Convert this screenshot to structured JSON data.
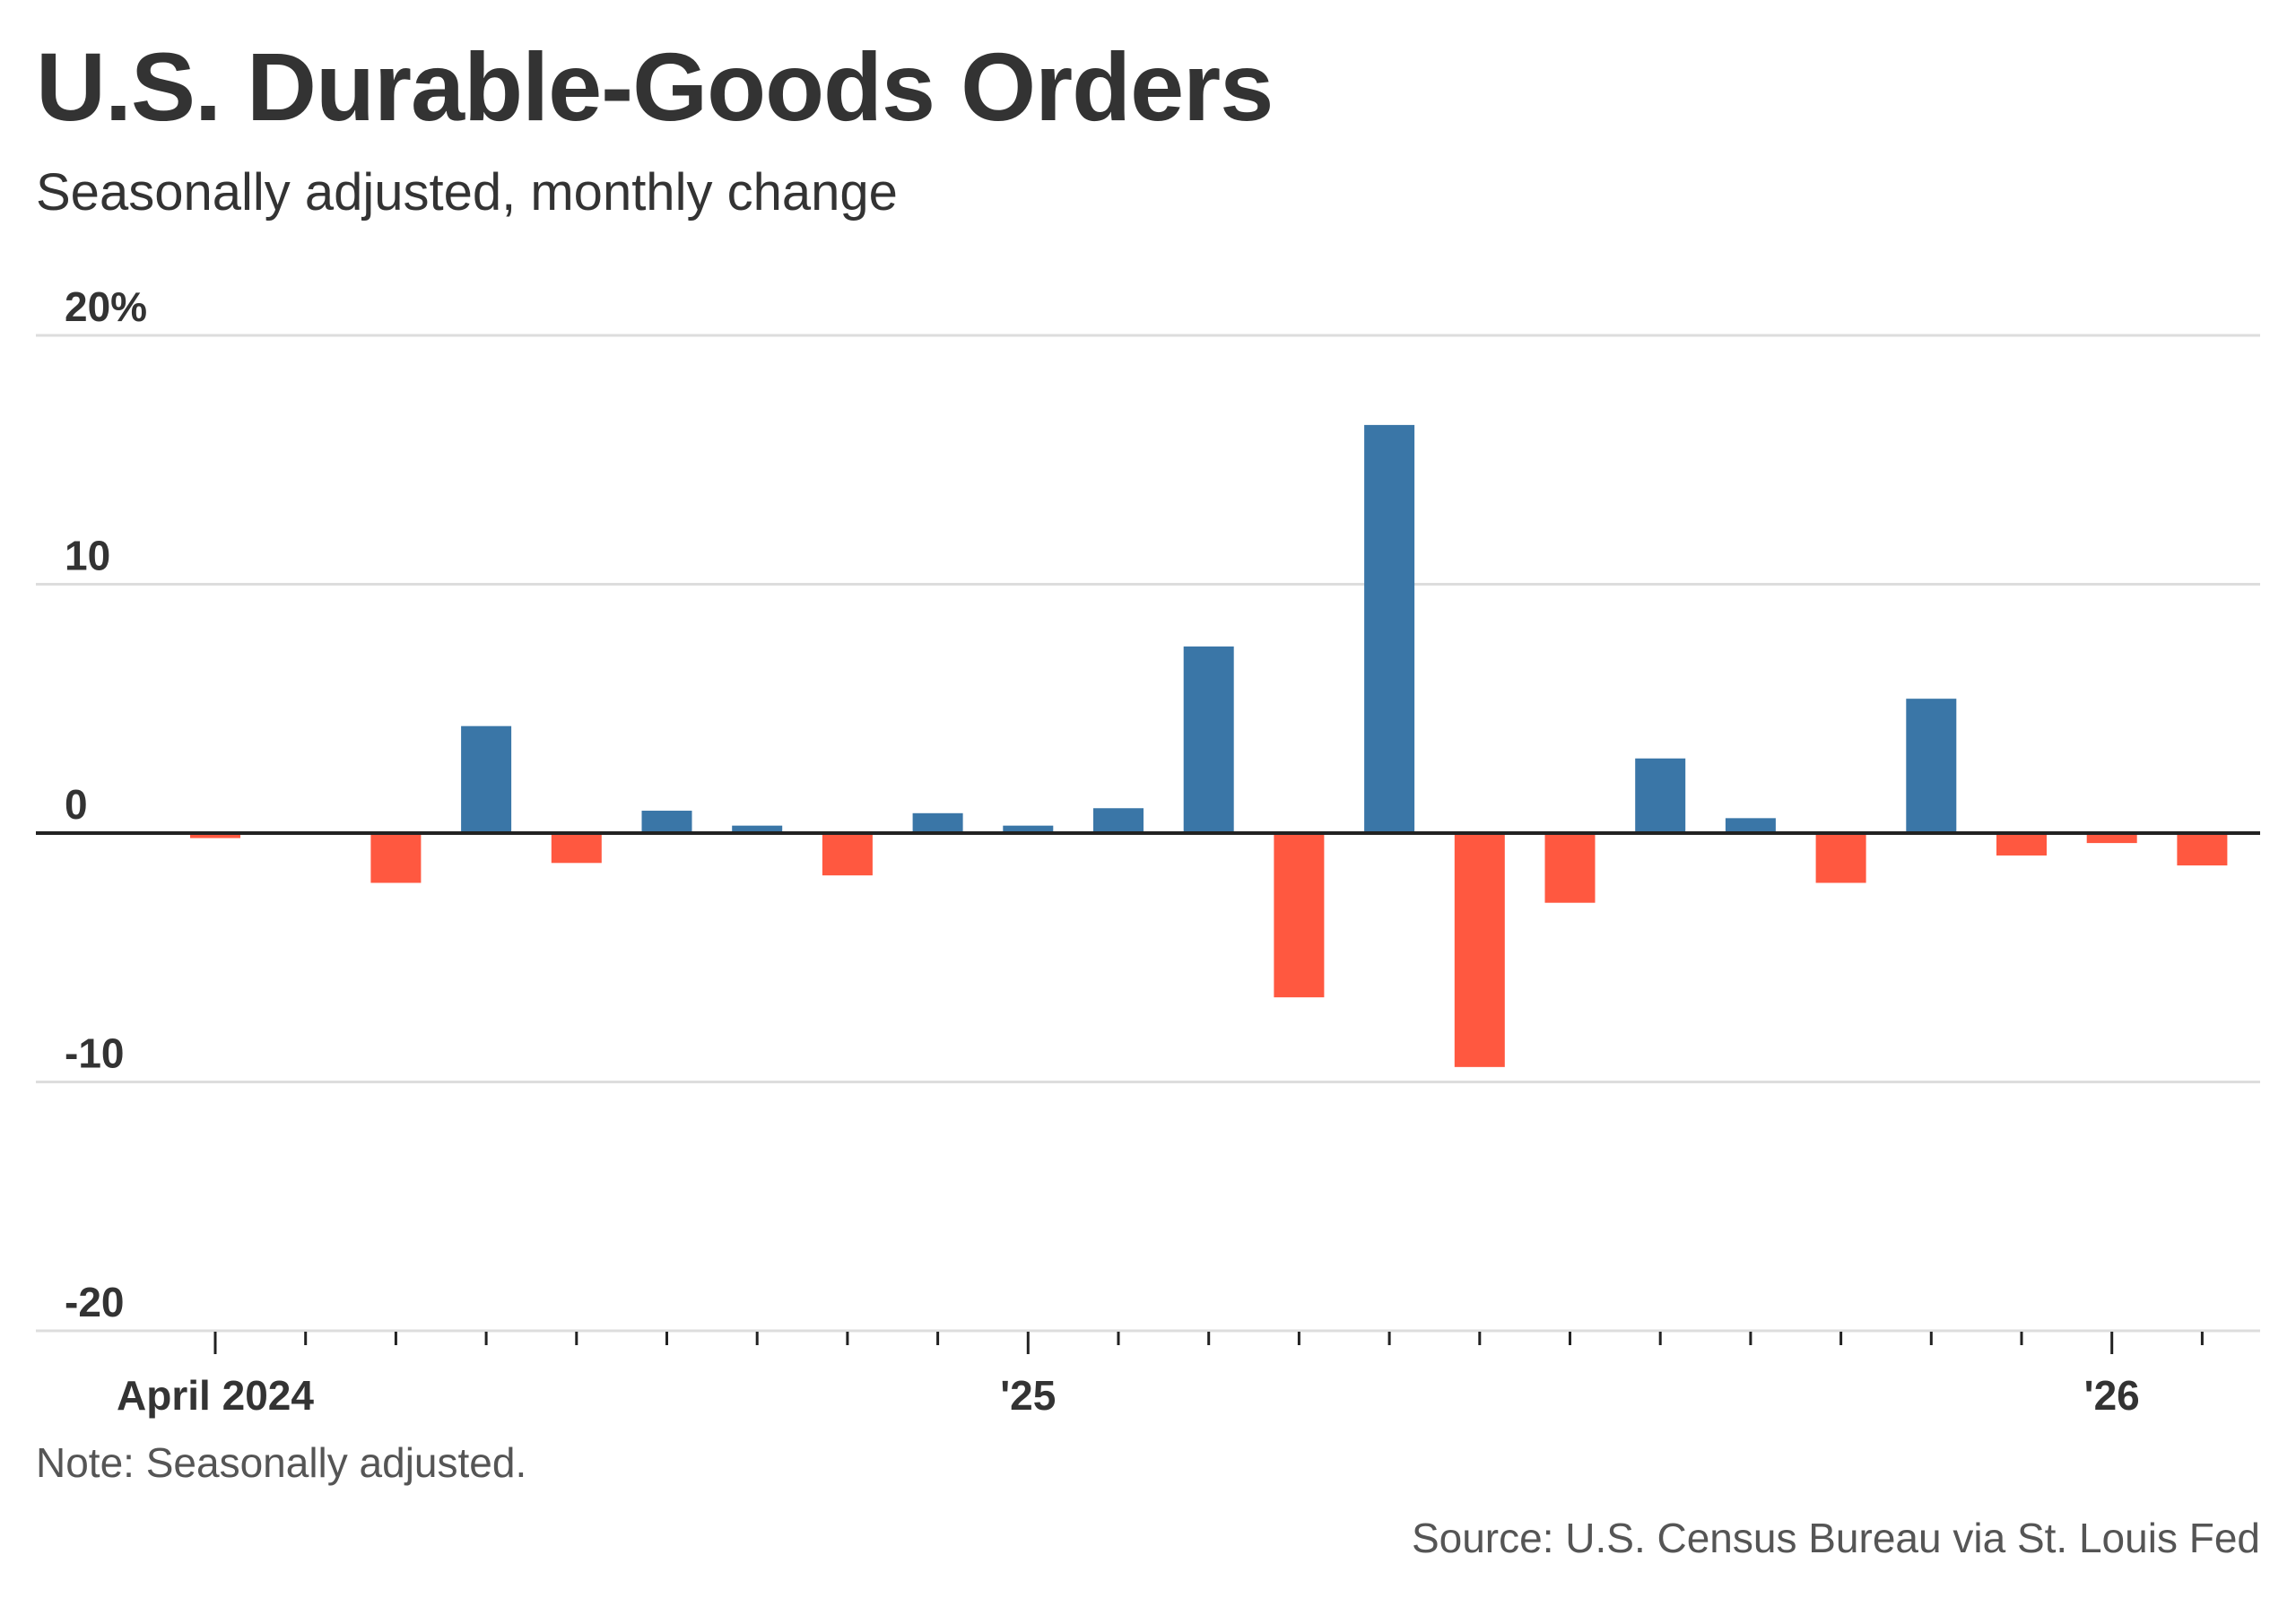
{
  "chart_data": {
    "type": "bar",
    "title": "U.S. Durable-Goods Orders",
    "subtitle": "Seasonally adjusted, monthly change",
    "ylim": [
      -20,
      20
    ],
    "y_ticks": [
      20,
      10,
      0,
      -10,
      -20
    ],
    "y_tick_labels": [
      "20%",
      "10",
      "0",
      "-10",
      "-20"
    ],
    "x_labels": [
      {
        "month_index": 0,
        "label": "April 2024"
      },
      {
        "month_index": 9,
        "label": "'25"
      },
      {
        "month_index": 21,
        "label": "'26"
      }
    ],
    "grid": true,
    "positive_color": "#3a76a7",
    "negative_color": "#ff5840",
    "axis_color": "#222222",
    "grid_color": "#dddddd",
    "tick_label_color": "#333333",
    "months": [
      "2024-04",
      "2024-05",
      "2024-06",
      "2024-07",
      "2024-08",
      "2024-09",
      "2024-10",
      "2024-11",
      "2024-12",
      "2025-01",
      "2025-02",
      "2025-03",
      "2025-04",
      "2025-05",
      "2025-06",
      "2025-07",
      "2025-08",
      "2025-09",
      "2025-10",
      "2025-11",
      "2025-12",
      "2026-01",
      "2026-02"
    ],
    "values": [
      -0.2,
      0.0,
      -2.0,
      4.3,
      -1.2,
      0.9,
      0.3,
      -1.7,
      0.8,
      0.3,
      1.0,
      7.5,
      -6.6,
      16.4,
      -9.4,
      -2.8,
      3.0,
      0.6,
      -2.0,
      5.4,
      -0.9,
      -0.4,
      -1.3
    ]
  },
  "note": "Note: Seasonally adjusted.",
  "source": "Source: U.S. Census Bureau via St. Louis Fed"
}
